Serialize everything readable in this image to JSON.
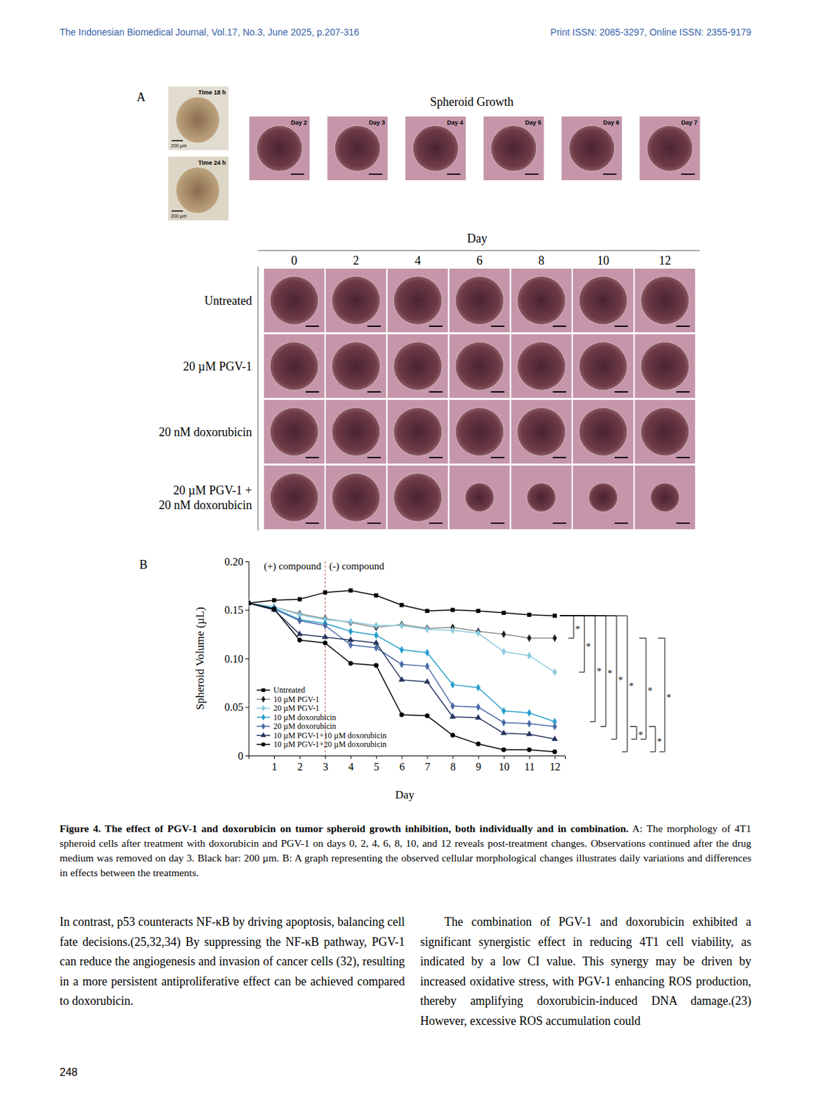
{
  "header": {
    "left": "The Indonesian Biomedical Journal, Vol.17, No.3, June 2025, p.207-316",
    "right": "Print ISSN: 2085-3297, Online ISSN: 2355-9179"
  },
  "figure_a": {
    "label": "A",
    "time_panels": [
      {
        "label": "Time 18 h",
        "scale": "200 µm"
      },
      {
        "label": "Time 24 h",
        "scale": "200 µm"
      }
    ],
    "growth_title": "Spheroid Growth",
    "growth_days": [
      "Day 2",
      "Day 3",
      "Day 4",
      "Day 5",
      "Day 6",
      "Day 7"
    ],
    "grid_axis_title": "Day",
    "grid_days": [
      0,
      2,
      4,
      6,
      8,
      10,
      12
    ],
    "rows": [
      [
        "Untreated"
      ],
      [
        "20 µM PGV-1"
      ],
      [
        "20 nM doxorubicin"
      ],
      [
        "20 µM PGV-1 +",
        "20 nM doxorubicin"
      ]
    ]
  },
  "figure_b_label": "B",
  "chart_data": {
    "type": "line",
    "x_label": "Day",
    "y_label": "Spheroid Volume (µL)",
    "x": [
      0,
      1,
      2,
      3,
      4,
      5,
      6,
      7,
      8,
      9,
      10,
      11,
      12
    ],
    "xlim": [
      0,
      12.4
    ],
    "xticks": [
      1,
      2,
      3,
      4,
      5,
      6,
      7,
      8,
      9,
      10,
      11,
      12
    ],
    "ylim": [
      0,
      0.2
    ],
    "yticks": [
      0,
      0.05,
      {
        "value": 0.1,
        "label": "0.10"
      },
      0.15,
      {
        "value": 0.2,
        "label": "0.20"
      }
    ],
    "legend": "lower left",
    "divider": {
      "x": 3,
      "left_text": "(+) compound",
      "right_text": "(-) compound"
    },
    "series": [
      {
        "name": "Untreated",
        "color": "#000000",
        "marker": "square",
        "values": [
          0.157,
          0.16,
          0.161,
          0.168,
          0.17,
          0.165,
          0.155,
          0.149,
          0.15,
          0.149,
          0.147,
          0.145,
          0.144
        ]
      },
      {
        "name": "10 µM PGV-1",
        "color": "#8c8c8c",
        "marker": "diamond",
        "values": [
          0.157,
          0.153,
          0.146,
          0.141,
          0.137,
          0.132,
          0.135,
          0.131,
          0.132,
          0.128,
          0.125,
          0.121,
          0.121
        ]
      },
      {
        "name": "20 µM PGV-1",
        "color": "#8ccbe0",
        "marker": "diamond",
        "values": [
          0.157,
          0.153,
          0.145,
          0.14,
          0.138,
          0.134,
          0.134,
          0.13,
          0.129,
          0.126,
          0.107,
          0.103,
          0.086
        ]
      },
      {
        "name": "10 µM doxorubicin",
        "color": "#2a9fcb",
        "marker": "diamond",
        "values": [
          0.157,
          0.152,
          0.14,
          0.136,
          0.128,
          0.124,
          0.109,
          0.106,
          0.073,
          0.07,
          0.046,
          0.044,
          0.035
        ]
      },
      {
        "name": "20 µM doxorubicin",
        "color": "#4a6aa5",
        "marker": "diamond",
        "values": [
          0.157,
          0.151,
          0.139,
          0.134,
          0.114,
          0.111,
          0.094,
          0.092,
          0.051,
          0.05,
          0.034,
          0.033,
          0.03
        ]
      },
      {
        "name": "10 µM PGV-1+10 µM doxorubicin",
        "color": "#26345f",
        "marker": "triangle",
        "values": [
          0.157,
          0.15,
          0.125,
          0.122,
          0.119,
          0.116,
          0.078,
          0.076,
          0.04,
          0.039,
          0.023,
          0.022,
          0.017
        ]
      },
      {
        "name": "10 µM PGV-1+20 µM doxorubicin",
        "color": "#000000",
        "marker": "circle",
        "values": [
          0.157,
          0.151,
          0.119,
          0.116,
          0.095,
          0.093,
          0.042,
          0.041,
          0.021,
          0.012,
          0.006,
          0.006,
          0.004
        ]
      }
    ],
    "significance": [
      {
        "series": [
          "Untreated",
          "10 µM PGV-1"
        ],
        "label": "*"
      },
      {
        "series": [
          "Untreated",
          "20 µM PGV-1"
        ],
        "label": "*"
      },
      {
        "series": [
          "Untreated",
          "10 µM doxorubicin"
        ],
        "label": "*"
      },
      {
        "series": [
          "Untreated",
          "20 µM doxorubicin"
        ],
        "label": "*"
      },
      {
        "series": [
          "Untreated",
          "10 µM PGV-1+10 µM doxorubicin"
        ],
        "label": "*"
      },
      {
        "series": [
          "Untreated",
          "10 µM PGV-1+20 µM doxorubicin"
        ],
        "label": "*"
      },
      {
        "series": [
          "20 µM doxorubicin",
          "10 µM PGV-1+10 µM doxorubicin"
        ],
        "label": "*"
      },
      {
        "series": [
          "10 µM PGV-1",
          "10 µM PGV-1+10 µM doxorubicin"
        ],
        "label": "*"
      },
      {
        "series": [
          "20 µM doxorubicin",
          "10 µM PGV-1+20 µM doxorubicin"
        ],
        "label": "*"
      },
      {
        "series": [
          "10 µM PGV-1",
          "10 µM PGV-1+20 µM doxorubicin"
        ],
        "label": "*"
      }
    ]
  },
  "caption": {
    "title": "Figure 4. The effect of PGV-1 and doxorubicin on tumor spheroid growth inhibition, both individually and in combination.",
    "text": "A: The morphology of 4T1 spheroid cells after treatment with doxorubicin and PGV-1 on days 0, 2, 4, 6, 8, 10, and 12 reveals post-treatment changes. Observations continued after the drug medium was removed on day 3. Black bar: 200 µm. B: A graph representing the observed cellular morphological changes illustrates daily variations and differences in effects between the treatments."
  },
  "body": {
    "left": "In contrast, p53 counteracts NF-κB by driving apoptosis, balancing cell fate decisions.(25,32,34) By suppressing the NF-κB pathway, PGV-1 can reduce the angiogenesis and invasion of cancer cells (32), resulting in a more persistent antiproliferative effect can be achieved compared to doxorubicin.",
    "right": "The combination of PGV-1 and doxorubicin exhibited a significant synergistic effect in reducing 4T1 cell viability, as indicated by a low CI value. This synergy may be driven by increased oxidative stress, with PGV-1 enhancing ROS production, thereby amplifying doxorubicin-induced DNA damage.(23) However, excessive ROS accumulation could"
  },
  "page_number": "248"
}
